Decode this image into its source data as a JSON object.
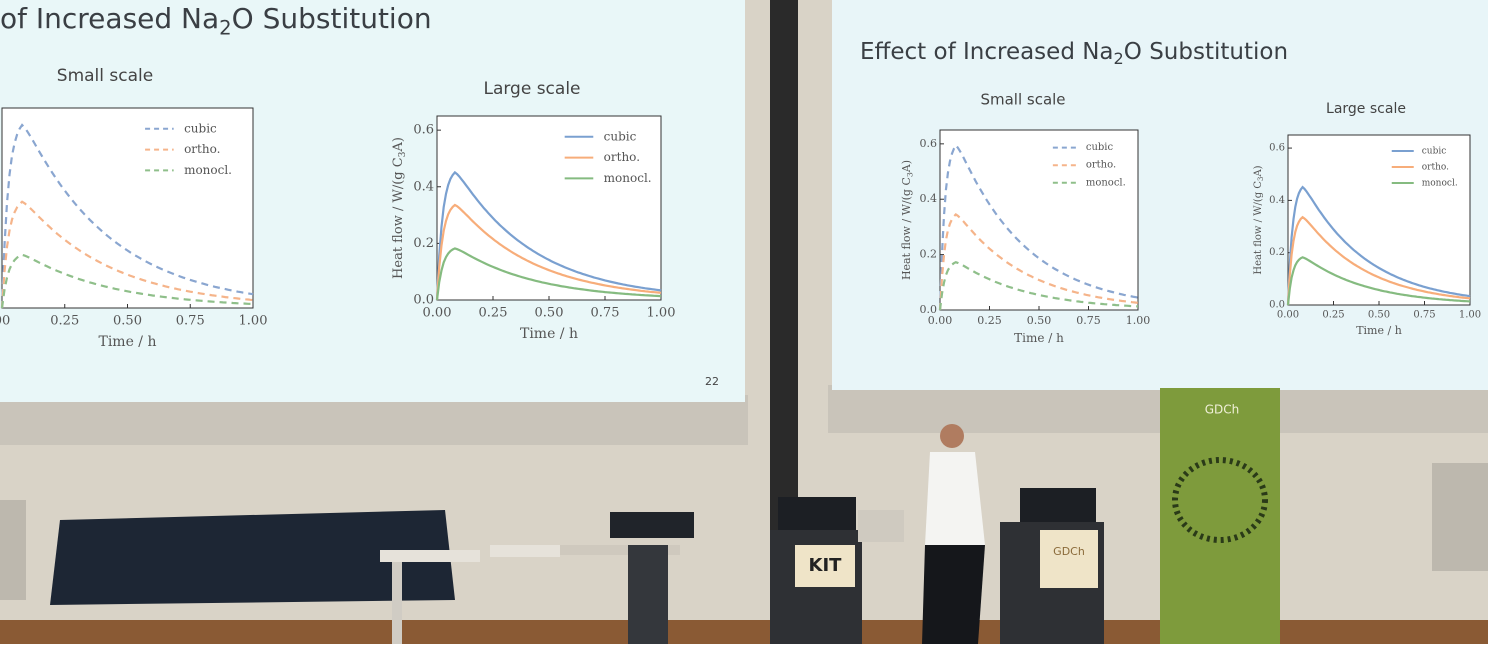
{
  "left_slide": {
    "title": {
      "prefix": "of Increased Na",
      "sub": "2",
      "suffix": "O Substitution"
    },
    "slide_number": "22",
    "panels": [
      {
        "title": "Small scale",
        "x_label": "Time / h",
        "dashed": true,
        "ylim": [
          0,
          0.65
        ],
        "xlim": [
          0,
          1
        ],
        "x_ticks": [
          {
            "value": 0,
            "label": "00"
          },
          {
            "value": 0.25,
            "label": "0.25"
          },
          {
            "value": 0.5,
            "label": "0.50"
          },
          {
            "value": 0.75,
            "label": "0.75"
          },
          {
            "value": 1,
            "label": "1.00"
          }
        ],
        "series": [
          {
            "name": "cubic",
            "color": "#8aa6d0",
            "peak": 0.62
          },
          {
            "name": "ortho.",
            "color": "#f5b48a",
            "peak": 0.36
          },
          {
            "name": "monocl.",
            "color": "#8fbf8a",
            "peak": 0.18
          }
        ]
      },
      {
        "title": "Large scale",
        "x_label": "Time / h",
        "y_label": {
          "prefix": "Heat flow / W/(g C",
          "sub": "3",
          "suffix": "A)"
        },
        "dashed": false,
        "ylim": [
          0,
          0.65
        ],
        "xlim": [
          0,
          1
        ],
        "x_ticks": [
          {
            "value": 0,
            "label": "0.00"
          },
          {
            "value": 0.25,
            "label": "0.25"
          },
          {
            "value": 0.5,
            "label": "0.50"
          },
          {
            "value": 0.75,
            "label": "0.75"
          },
          {
            "value": 1,
            "label": "1.00"
          }
        ],
        "y_ticks": [
          {
            "value": 0,
            "label": "0.0"
          },
          {
            "value": 0.2,
            "label": "0.2"
          },
          {
            "value": 0.4,
            "label": "0.4"
          },
          {
            "value": 0.6,
            "label": "0.6"
          }
        ],
        "series": [
          {
            "name": "cubic",
            "color": "#7aa0d0",
            "peak": 0.47
          },
          {
            "name": "ortho.",
            "color": "#f7ad7a",
            "peak": 0.35
          },
          {
            "name": "monocl.",
            "color": "#85bb80",
            "peak": 0.19
          }
        ]
      }
    ]
  },
  "right_slide": {
    "title": {
      "prefix": "Effect of Increased Na",
      "sub": "2",
      "suffix": "O Substitution"
    },
    "panels": [
      {
        "title": "Small scale",
        "x_label": "Time / h",
        "y_label": {
          "prefix": "Heat flow / W/(g C",
          "sub": "3",
          "suffix": "A)"
        },
        "dashed": true,
        "ylim": [
          0,
          0.65
        ],
        "xlim": [
          0,
          1
        ],
        "x_ticks": [
          {
            "value": 0,
            "label": "0.00"
          },
          {
            "value": 0.25,
            "label": "0.25"
          },
          {
            "value": 0.5,
            "label": "0.50"
          },
          {
            "value": 0.75,
            "label": "0.75"
          },
          {
            "value": 1,
            "label": "1.00"
          }
        ],
        "y_ticks": [
          {
            "value": 0,
            "label": "0.0"
          },
          {
            "value": 0.2,
            "label": "0.2"
          },
          {
            "value": 0.4,
            "label": "0.4"
          },
          {
            "value": 0.6,
            "label": "0.6"
          }
        ],
        "series": [
          {
            "name": "cubic",
            "color": "#8aa6d0",
            "peak": 0.62
          },
          {
            "name": "ortho.",
            "color": "#f5b48a",
            "peak": 0.36
          },
          {
            "name": "monocl.",
            "color": "#8fbf8a",
            "peak": 0.18
          }
        ]
      },
      {
        "title": "Large scale",
        "x_label": "Time / h",
        "y_label": {
          "prefix": "Heat flow / W/(g C",
          "sub": "3",
          "suffix": "A)"
        },
        "dashed": false,
        "ylim": [
          0,
          0.65
        ],
        "xlim": [
          0,
          1
        ],
        "x_ticks": [
          {
            "value": 0,
            "label": "0.00"
          },
          {
            "value": 0.25,
            "label": "0.25"
          },
          {
            "value": 0.5,
            "label": "0.50"
          },
          {
            "value": 0.75,
            "label": "0.75"
          },
          {
            "value": 1,
            "label": "1.00"
          }
        ],
        "y_ticks": [
          {
            "value": 0,
            "label": "0.0"
          },
          {
            "value": 0.2,
            "label": "0.2"
          },
          {
            "value": 0.4,
            "label": "0.4"
          },
          {
            "value": 0.6,
            "label": "0.6"
          }
        ],
        "series": [
          {
            "name": "cubic",
            "color": "#7aa0d0",
            "peak": 0.47
          },
          {
            "name": "ortho.",
            "color": "#f7ad7a",
            "peak": 0.35
          },
          {
            "name": "monocl.",
            "color": "#85bb80",
            "peak": 0.19
          }
        ]
      }
    ]
  },
  "podium_sign": "KIT",
  "podium_right_sign": "GDCh",
  "banner": "GDCh"
}
